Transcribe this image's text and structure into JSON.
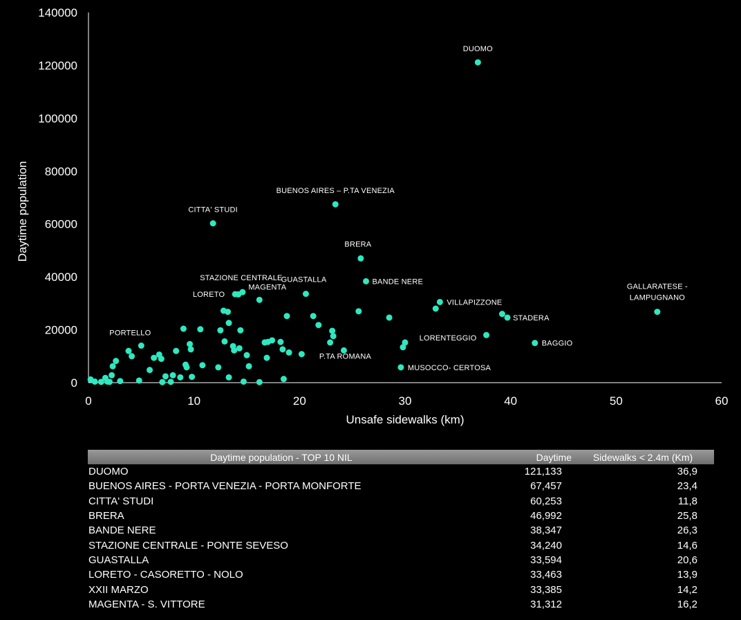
{
  "colors": {
    "background": "#000000",
    "point": "#2ee8c0",
    "text": "#ffffff",
    "header": "#8a8a8a"
  },
  "chart_data": {
    "type": "scatter",
    "title": "",
    "xlabel": "Unsafe sidewalks (km)",
    "ylabel": "Daytime population",
    "xlim": [
      0,
      60
    ],
    "ylim": [
      0,
      140000
    ],
    "x_ticks": [
      "0",
      "10",
      "20",
      "30",
      "40",
      "50",
      "60"
    ],
    "y_ticks": [
      "0",
      "20000",
      "40000",
      "60000",
      "80000",
      "100000",
      "120000",
      "140000"
    ],
    "grid": false,
    "points": [
      {
        "x": 36.9,
        "y": 121133,
        "label": "DUOMO"
      },
      {
        "x": 23.4,
        "y": 67457,
        "label": "BUENOS AIRES – P.TA VENEZIA"
      },
      {
        "x": 11.8,
        "y": 60253,
        "label": "CITTA' STUDI"
      },
      {
        "x": 25.8,
        "y": 46992,
        "label": "BRERA"
      },
      {
        "x": 26.3,
        "y": 38347,
        "label": "BANDE NERE"
      },
      {
        "x": 14.6,
        "y": 34240,
        "label": "STAZIONE CENTRALE"
      },
      {
        "x": 20.6,
        "y": 33594,
        "label": "GUASTALLA"
      },
      {
        "x": 13.9,
        "y": 33463,
        "label": "LORETO"
      },
      {
        "x": 14.2,
        "y": 33385,
        "label": ""
      },
      {
        "x": 16.2,
        "y": 31312,
        "label": "MAGENTA"
      },
      {
        "x": 33.3,
        "y": 30500,
        "label": "VILLAPIZZONE"
      },
      {
        "x": 53.9,
        "y": 26800,
        "label": "GALLARATESE - LAMPUGNANO"
      },
      {
        "x": 39.7,
        "y": 24600,
        "label": "STADERA"
      },
      {
        "x": 37.7,
        "y": 18000,
        "label": "LORENTEGGIO"
      },
      {
        "x": 42.3,
        "y": 15000,
        "label": "BAGGIO"
      },
      {
        "x": 24.2,
        "y": 12200,
        "label": "P.TA ROMANA"
      },
      {
        "x": 29.6,
        "y": 5800,
        "label": "MUSOCCO- CERTOSA"
      },
      {
        "x": 5.0,
        "y": 14000,
        "label": "PORTELLO"
      },
      {
        "x": 0.2,
        "y": 1200,
        "label": ""
      },
      {
        "x": 0.6,
        "y": 400,
        "label": ""
      },
      {
        "x": 1.2,
        "y": 300,
        "label": ""
      },
      {
        "x": 1.6,
        "y": 1800,
        "label": ""
      },
      {
        "x": 1.8,
        "y": 400,
        "label": ""
      },
      {
        "x": 2.0,
        "y": 300,
        "label": ""
      },
      {
        "x": 2.2,
        "y": 2800,
        "label": ""
      },
      {
        "x": 2.3,
        "y": 6200,
        "label": ""
      },
      {
        "x": 2.6,
        "y": 8200,
        "label": ""
      },
      {
        "x": 3.0,
        "y": 600,
        "label": ""
      },
      {
        "x": 3.8,
        "y": 12000,
        "label": ""
      },
      {
        "x": 4.1,
        "y": 10000,
        "label": ""
      },
      {
        "x": 4.8,
        "y": 800,
        "label": ""
      },
      {
        "x": 5.8,
        "y": 4800,
        "label": ""
      },
      {
        "x": 6.2,
        "y": 9400,
        "label": ""
      },
      {
        "x": 6.7,
        "y": 10600,
        "label": ""
      },
      {
        "x": 6.9,
        "y": 9000,
        "label": ""
      },
      {
        "x": 7.0,
        "y": 200,
        "label": ""
      },
      {
        "x": 7.3,
        "y": 2400,
        "label": ""
      },
      {
        "x": 7.8,
        "y": 300,
        "label": ""
      },
      {
        "x": 8.0,
        "y": 2800,
        "label": ""
      },
      {
        "x": 8.3,
        "y": 12000,
        "label": ""
      },
      {
        "x": 8.7,
        "y": 2000,
        "label": ""
      },
      {
        "x": 9.0,
        "y": 20400,
        "label": ""
      },
      {
        "x": 9.2,
        "y": 6800,
        "label": ""
      },
      {
        "x": 9.3,
        "y": 5800,
        "label": ""
      },
      {
        "x": 9.6,
        "y": 14600,
        "label": ""
      },
      {
        "x": 9.7,
        "y": 12600,
        "label": ""
      },
      {
        "x": 9.8,
        "y": 2200,
        "label": ""
      },
      {
        "x": 10.6,
        "y": 20200,
        "label": ""
      },
      {
        "x": 10.8,
        "y": 6600,
        "label": ""
      },
      {
        "x": 12.3,
        "y": 5800,
        "label": ""
      },
      {
        "x": 12.5,
        "y": 19800,
        "label": ""
      },
      {
        "x": 12.8,
        "y": 27200,
        "label": ""
      },
      {
        "x": 12.9,
        "y": 15600,
        "label": ""
      },
      {
        "x": 13.2,
        "y": 26800,
        "label": ""
      },
      {
        "x": 13.3,
        "y": 22600,
        "label": ""
      },
      {
        "x": 13.3,
        "y": 2000,
        "label": ""
      },
      {
        "x": 13.7,
        "y": 13800,
        "label": ""
      },
      {
        "x": 13.8,
        "y": 12200,
        "label": ""
      },
      {
        "x": 14.3,
        "y": 13000,
        "label": ""
      },
      {
        "x": 14.4,
        "y": 19800,
        "label": ""
      },
      {
        "x": 14.7,
        "y": 400,
        "label": ""
      },
      {
        "x": 15.0,
        "y": 10400,
        "label": ""
      },
      {
        "x": 15.2,
        "y": 6200,
        "label": ""
      },
      {
        "x": 16.2,
        "y": 200,
        "label": ""
      },
      {
        "x": 16.7,
        "y": 15200,
        "label": ""
      },
      {
        "x": 16.9,
        "y": 9400,
        "label": ""
      },
      {
        "x": 17.0,
        "y": 15400,
        "label": ""
      },
      {
        "x": 17.4,
        "y": 16000,
        "label": ""
      },
      {
        "x": 18.2,
        "y": 15400,
        "label": ""
      },
      {
        "x": 18.4,
        "y": 12600,
        "label": ""
      },
      {
        "x": 18.5,
        "y": 1400,
        "label": ""
      },
      {
        "x": 18.8,
        "y": 25200,
        "label": ""
      },
      {
        "x": 19.0,
        "y": 11400,
        "label": ""
      },
      {
        "x": 20.2,
        "y": 10800,
        "label": ""
      },
      {
        "x": 21.3,
        "y": 25200,
        "label": ""
      },
      {
        "x": 21.8,
        "y": 21800,
        "label": ""
      },
      {
        "x": 22.9,
        "y": 15200,
        "label": ""
      },
      {
        "x": 23.1,
        "y": 19600,
        "label": ""
      },
      {
        "x": 23.2,
        "y": 17600,
        "label": ""
      },
      {
        "x": 25.6,
        "y": 27000,
        "label": ""
      },
      {
        "x": 28.5,
        "y": 24600,
        "label": ""
      },
      {
        "x": 29.8,
        "y": 13400,
        "label": ""
      },
      {
        "x": 30.0,
        "y": 15200,
        "label": ""
      },
      {
        "x": 32.9,
        "y": 28000,
        "label": ""
      },
      {
        "x": 39.2,
        "y": 26000,
        "label": ""
      }
    ]
  },
  "table": {
    "headers": [
      "Daytime population - TOP 10 NIL",
      "Daytime",
      "Sidewalks < 2.4m (Km)"
    ],
    "rows": [
      [
        "DUOMO",
        "121,133",
        "36,9"
      ],
      [
        "BUENOS AIRES - PORTA VENEZIA - PORTA MONFORTE",
        "67,457",
        "23,4"
      ],
      [
        "CITTA' STUDI",
        "60,253",
        "11,8"
      ],
      [
        "BRERA",
        "46,992",
        "25,8"
      ],
      [
        "BANDE NERE",
        "38,347",
        "26,3"
      ],
      [
        "STAZIONE CENTRALE - PONTE SEVESO",
        "34,240",
        "14,6"
      ],
      [
        "GUASTALLA",
        "33,594",
        "20,6"
      ],
      [
        "LORETO - CASORETTO - NOLO",
        "33,463",
        "13,9"
      ],
      [
        "XXII MARZO",
        "33,385",
        "14,2"
      ],
      [
        "MAGENTA - S. VITTORE",
        "31,312",
        "16,2"
      ]
    ]
  }
}
